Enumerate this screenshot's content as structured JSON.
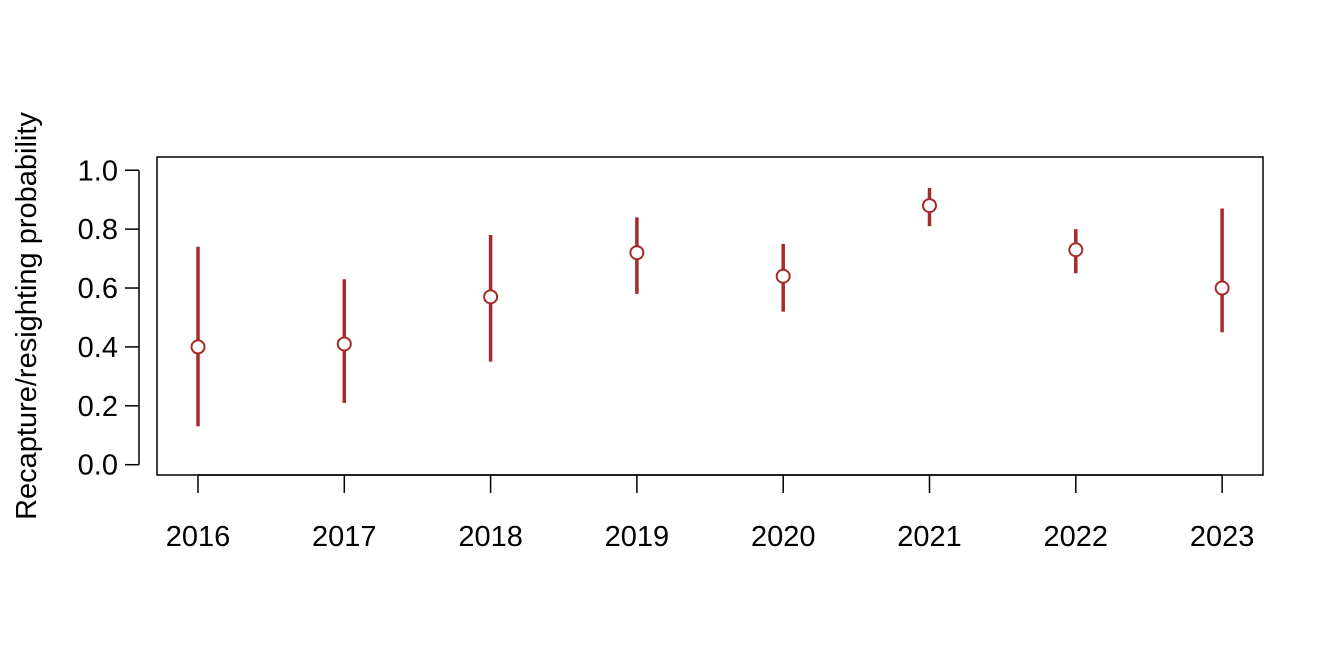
{
  "chart_data": {
    "type": "scatter",
    "title": "",
    "xlabel": "",
    "ylabel": "Recapture/resighting probability",
    "categories": [
      "2016",
      "2017",
      "2018",
      "2019",
      "2020",
      "2021",
      "2022",
      "2023"
    ],
    "series": [
      {
        "values": [
          0.4,
          0.41,
          0.57,
          0.72,
          0.64,
          0.88,
          0.73,
          0.6
        ],
        "lower": [
          0.13,
          0.21,
          0.35,
          0.58,
          0.52,
          0.81,
          0.65,
          0.45
        ],
        "upper": [
          0.74,
          0.63,
          0.78,
          0.84,
          0.75,
          0.94,
          0.8,
          0.87
        ]
      }
    ],
    "yticks": [
      "0.0",
      "0.2",
      "0.4",
      "0.6",
      "0.8",
      "1.0"
    ],
    "ylim": [
      -0.035,
      1.045
    ],
    "grid": false,
    "colors": {
      "interval": "#A52A2A",
      "point_fill": "#FFFFFF",
      "axis": "#000000"
    }
  }
}
